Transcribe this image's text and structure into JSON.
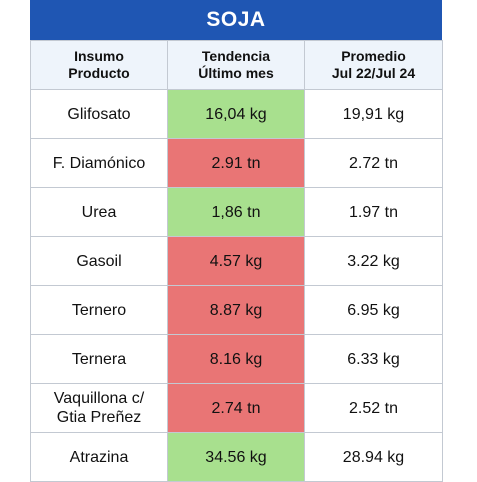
{
  "title": "SOJA",
  "headers": [
    [
      "Insumo",
      "Producto"
    ],
    [
      "Tendencia",
      "Último mes"
    ],
    [
      "Promedio",
      "Jul 22/Jul 24"
    ]
  ],
  "rows": [
    {
      "label": [
        "Glifosato"
      ],
      "trend": "16,04 kg",
      "trend_status": "green",
      "average": "19,91 kg"
    },
    {
      "label": [
        "F. Diamónico"
      ],
      "trend": "2.91 tn",
      "trend_status": "red",
      "average": "2.72 tn"
    },
    {
      "label": [
        "Urea"
      ],
      "trend": "1,86 tn",
      "trend_status": "green",
      "average": "1.97 tn"
    },
    {
      "label": [
        "Gasoil"
      ],
      "trend": "4.57 kg",
      "trend_status": "red",
      "average": "3.22 kg"
    },
    {
      "label": [
        "Ternero"
      ],
      "trend": "8.87 kg",
      "trend_status": "red",
      "average": "6.95 kg"
    },
    {
      "label": [
        "Ternera"
      ],
      "trend": "8.16 kg",
      "trend_status": "red",
      "average": "6.33 kg"
    },
    {
      "label": [
        "Vaquillona c/",
        "Gtia Preñez"
      ],
      "trend": "2.74 tn",
      "trend_status": "red",
      "average": "2.52 tn"
    },
    {
      "label": [
        "Atrazina"
      ],
      "trend": "34.56 kg",
      "trend_status": "green",
      "average": "28.94 kg"
    }
  ],
  "colors": {
    "title_bg": "#1f56b3",
    "header_bg": "#eef4fb",
    "green": "#a8e08e",
    "red": "#e97575",
    "border": "#c3c9d2"
  }
}
